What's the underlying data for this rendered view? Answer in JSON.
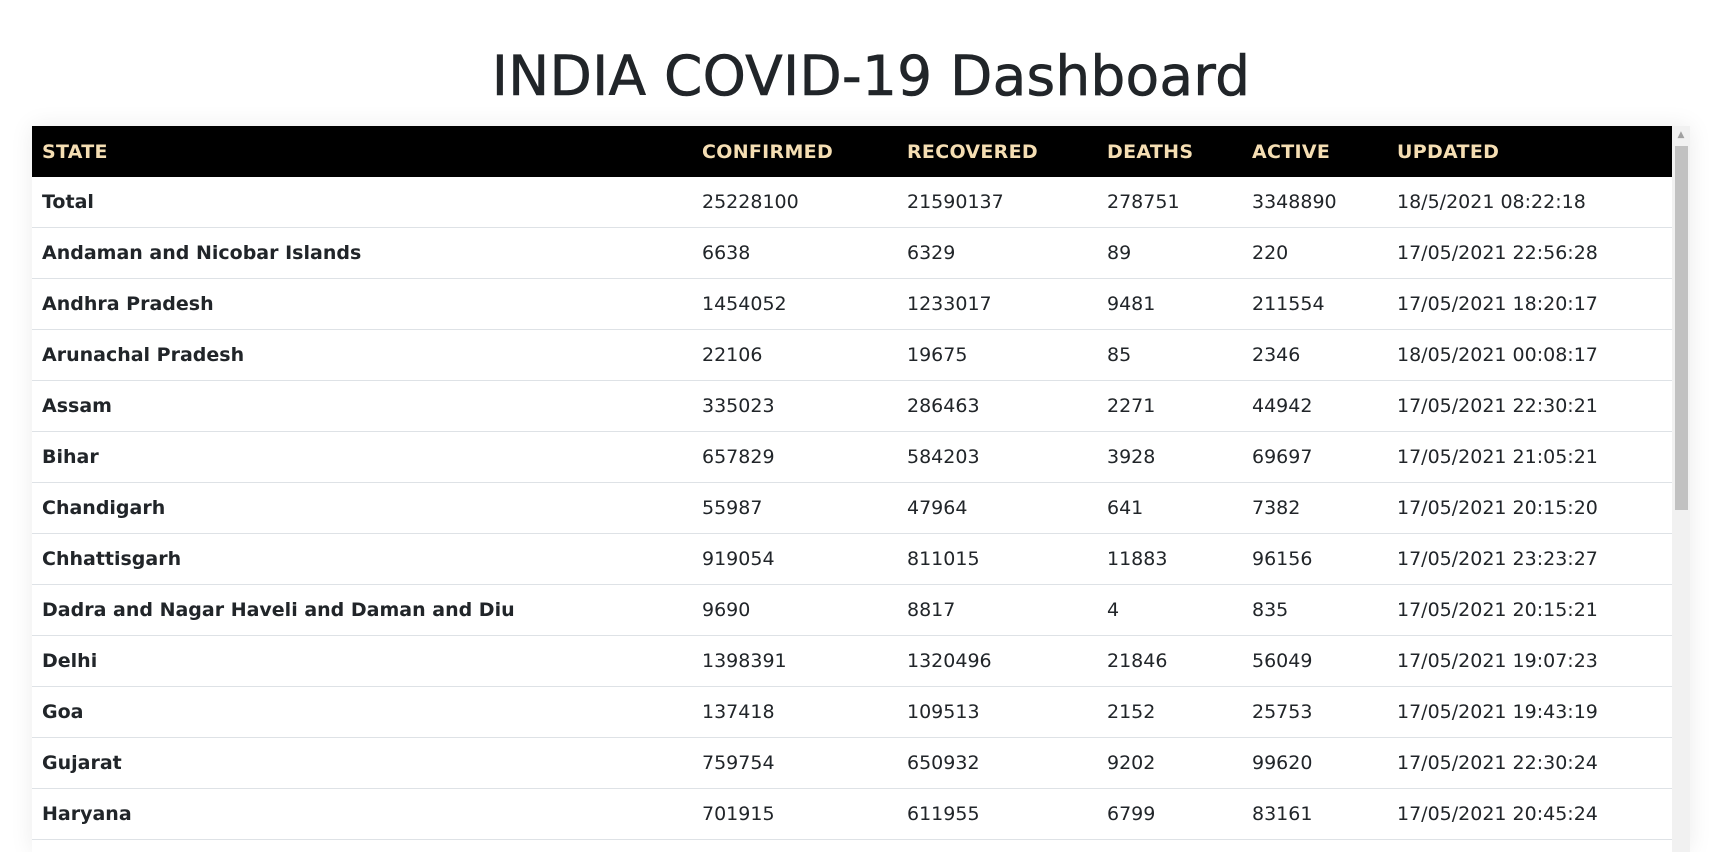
{
  "page": {
    "title": "INDIA COVID-19 Dashboard"
  },
  "table": {
    "headers": {
      "state": "STATE",
      "confirmed": "CONFIRMED",
      "recovered": "RECOVERED",
      "deaths": "DEATHS",
      "active": "ACTIVE",
      "updated": "UPDATED"
    },
    "rows": [
      {
        "state": "Total",
        "confirmed": "25228100",
        "recovered": "21590137",
        "deaths": "278751",
        "active": "3348890",
        "updated": "18/5/2021 08:22:18"
      },
      {
        "state": "Andaman and Nicobar Islands",
        "confirmed": "6638",
        "recovered": "6329",
        "deaths": "89",
        "active": "220",
        "updated": "17/05/2021 22:56:28"
      },
      {
        "state": "Andhra Pradesh",
        "confirmed": "1454052",
        "recovered": "1233017",
        "deaths": "9481",
        "active": "211554",
        "updated": "17/05/2021 18:20:17"
      },
      {
        "state": "Arunachal Pradesh",
        "confirmed": "22106",
        "recovered": "19675",
        "deaths": "85",
        "active": "2346",
        "updated": "18/05/2021 00:08:17"
      },
      {
        "state": "Assam",
        "confirmed": "335023",
        "recovered": "286463",
        "deaths": "2271",
        "active": "44942",
        "updated": "17/05/2021 22:30:21"
      },
      {
        "state": "Bihar",
        "confirmed": "657829",
        "recovered": "584203",
        "deaths": "3928",
        "active": "69697",
        "updated": "17/05/2021 21:05:21"
      },
      {
        "state": "Chandigarh",
        "confirmed": "55987",
        "recovered": "47964",
        "deaths": "641",
        "active": "7382",
        "updated": "17/05/2021 20:15:20"
      },
      {
        "state": "Chhattisgarh",
        "confirmed": "919054",
        "recovered": "811015",
        "deaths": "11883",
        "active": "96156",
        "updated": "17/05/2021 23:23:27"
      },
      {
        "state": "Dadra and Nagar Haveli and Daman and Diu",
        "confirmed": "9690",
        "recovered": "8817",
        "deaths": "4",
        "active": "835",
        "updated": "17/05/2021 20:15:21"
      },
      {
        "state": "Delhi",
        "confirmed": "1398391",
        "recovered": "1320496",
        "deaths": "21846",
        "active": "56049",
        "updated": "17/05/2021 19:07:23"
      },
      {
        "state": "Goa",
        "confirmed": "137418",
        "recovered": "109513",
        "deaths": "2152",
        "active": "25753",
        "updated": "17/05/2021 19:43:19"
      },
      {
        "state": "Gujarat",
        "confirmed": "759754",
        "recovered": "650932",
        "deaths": "9202",
        "active": "99620",
        "updated": "17/05/2021 22:30:24"
      },
      {
        "state": "Haryana",
        "confirmed": "701915",
        "recovered": "611955",
        "deaths": "6799",
        "active": "83161",
        "updated": "17/05/2021 20:45:24"
      }
    ]
  },
  "colors": {
    "header_bg": "#000000",
    "header_text": "#f5deb3",
    "row_border": "#dee2e6"
  }
}
